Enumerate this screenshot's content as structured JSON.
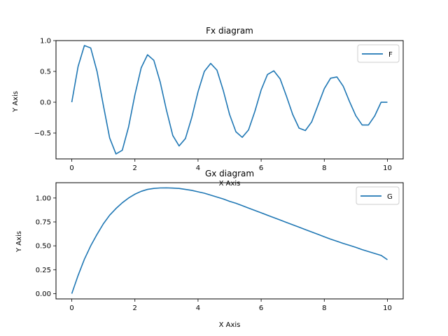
{
  "chart_data": [
    {
      "type": "line",
      "title": "Fx diagram",
      "xlabel": "X Axis",
      "ylabel": "Y Axis",
      "xlim": [
        -0.5,
        10.5
      ],
      "ylim": [
        -0.92,
        1.0
      ],
      "xticks": [
        0,
        2,
        4,
        6,
        8,
        10
      ],
      "xtick_labels": [
        "0",
        "2",
        "4",
        "6",
        "8",
        "10"
      ],
      "yticks": [
        -0.5,
        0.0,
        0.5,
        1.0
      ],
      "ytick_labels": [
        "−0.5",
        "0.0",
        "0.5",
        "1.0"
      ],
      "grid": false,
      "legend": "top-right",
      "series": [
        {
          "name": "F",
          "color": "#1f77b4",
          "x": [
            0,
            0.2,
            0.4,
            0.6,
            0.8,
            1.0,
            1.2,
            1.4,
            1.6,
            1.8,
            2.0,
            2.2,
            2.4,
            2.6,
            2.8,
            3.0,
            3.2,
            3.4,
            3.6,
            3.8,
            4.0,
            4.2,
            4.4,
            4.6,
            4.8,
            5.0,
            5.2,
            5.4,
            5.6,
            5.8,
            6.0,
            6.2,
            6.4,
            6.6,
            6.8,
            7.0,
            7.2,
            7.4,
            7.6,
            7.8,
            8.0,
            8.2,
            8.4,
            8.6,
            8.8,
            9.0,
            9.2,
            9.4,
            9.6,
            9.8,
            10.0
          ],
          "y": [
            0.0,
            0.58,
            0.92,
            0.88,
            0.5,
            -0.05,
            -0.58,
            -0.84,
            -0.78,
            -0.4,
            0.12,
            0.56,
            0.77,
            0.68,
            0.33,
            -0.13,
            -0.54,
            -0.71,
            -0.59,
            -0.25,
            0.17,
            0.5,
            0.63,
            0.52,
            0.19,
            -0.2,
            -0.48,
            -0.57,
            -0.45,
            -0.15,
            0.2,
            0.45,
            0.51,
            0.38,
            0.1,
            -0.2,
            -0.42,
            -0.46,
            -0.32,
            -0.05,
            0.22,
            0.39,
            0.41,
            0.26,
            0.01,
            -0.22,
            -0.37,
            -0.37,
            -0.22,
            0.0,
            0.0
          ]
        }
      ]
    },
    {
      "type": "line",
      "title": "Gx diagram",
      "xlabel": "X Axis",
      "ylabel": "Y Axis",
      "xlim": [
        -0.5,
        10.5
      ],
      "ylim": [
        -0.055,
        1.16
      ],
      "xticks": [
        0,
        2,
        4,
        6,
        8,
        10
      ],
      "xtick_labels": [
        "0",
        "2",
        "4",
        "6",
        "8",
        "10"
      ],
      "yticks": [
        0.0,
        0.25,
        0.5,
        0.75,
        1.0
      ],
      "ytick_labels": [
        "0.00",
        "0.25",
        "0.50",
        "0.75",
        "1.00"
      ],
      "grid": false,
      "legend": "top-right",
      "series": [
        {
          "name": "G",
          "color": "#1f77b4",
          "x": [
            0,
            0.2,
            0.4,
            0.6,
            0.8,
            1.0,
            1.2,
            1.4,
            1.6,
            1.8,
            2.0,
            2.2,
            2.4,
            2.6,
            2.8,
            3.0,
            3.2,
            3.4,
            3.6,
            3.8,
            4.0,
            4.2,
            4.4,
            4.6,
            4.8,
            5.0,
            5.2,
            5.4,
            5.6,
            5.8,
            6.0,
            6.2,
            6.4,
            6.6,
            6.8,
            7.0,
            7.2,
            7.4,
            7.6,
            7.8,
            8.0,
            8.2,
            8.4,
            8.6,
            8.8,
            9.0,
            9.2,
            9.4,
            9.6,
            9.8,
            10.0
          ],
          "y": [
            0.0,
            0.19,
            0.36,
            0.5,
            0.62,
            0.73,
            0.82,
            0.89,
            0.95,
            1.0,
            1.04,
            1.07,
            1.09,
            1.1,
            1.105,
            1.106,
            1.104,
            1.1,
            1.09,
            1.08,
            1.065,
            1.05,
            1.03,
            1.01,
            0.99,
            0.965,
            0.945,
            0.92,
            0.895,
            0.87,
            0.845,
            0.82,
            0.795,
            0.77,
            0.745,
            0.72,
            0.695,
            0.67,
            0.645,
            0.62,
            0.595,
            0.57,
            0.548,
            0.525,
            0.505,
            0.484,
            0.46,
            0.44,
            0.42,
            0.4,
            0.355
          ]
        }
      ]
    }
  ]
}
